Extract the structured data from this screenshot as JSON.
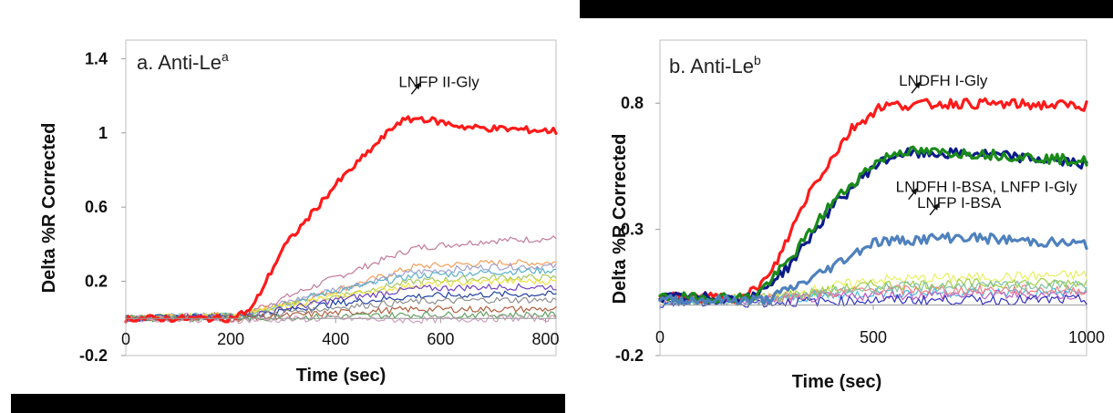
{
  "chart_data": [
    {
      "type": "line",
      "panel_label": "a. Anti-Le",
      "panel_sup": "a",
      "xlabel": "Time (sec)",
      "ylabel": "Delta %R Corrected",
      "xlim": [
        0,
        820
      ],
      "ylim": [
        -0.2,
        1.5
      ],
      "xticks": [
        "0",
        "200",
        "400",
        "600",
        "800"
      ],
      "yticks": [
        "-0.2",
        "0.2",
        "0.6",
        "1",
        "1.4"
      ],
      "xtick_values": [
        0,
        200,
        400,
        600,
        800
      ],
      "ytick_values": [
        -0.2,
        0.2,
        0.6,
        1.0,
        1.4
      ],
      "grid": false,
      "annotations": [
        {
          "text": "LNFP II-Gly",
          "x": 520,
          "y": 1.14
        }
      ],
      "series": [
        {
          "name": "LNFP II-Gly",
          "color": "#ff1a1a",
          "bold": true,
          "x": [
            0,
            200,
            240,
            300,
            400,
            520,
            560,
            650,
            820
          ],
          "y": [
            0.0,
            0.0,
            0.05,
            0.38,
            0.72,
            1.06,
            1.08,
            1.03,
            1.01
          ]
        },
        {
          "color": "#c07a9a",
          "x": [
            0,
            220,
            400,
            550,
            700,
            820
          ],
          "y": [
            0.0,
            0.02,
            0.22,
            0.38,
            0.42,
            0.43
          ]
        },
        {
          "color": "#f2a05a",
          "x": [
            0,
            220,
            400,
            550,
            700,
            820
          ],
          "y": [
            0.0,
            0.02,
            0.15,
            0.28,
            0.3,
            0.3
          ]
        },
        {
          "color": "#a0a0d0",
          "x": [
            0,
            220,
            400,
            550,
            700,
            820
          ],
          "y": [
            0.0,
            0.02,
            0.16,
            0.25,
            0.28,
            0.28
          ]
        },
        {
          "color": "#5ab0c8",
          "x": [
            0,
            220,
            400,
            550,
            700,
            820
          ],
          "y": [
            0.0,
            0.02,
            0.15,
            0.23,
            0.25,
            0.26
          ]
        },
        {
          "color": "#a8c860",
          "x": [
            0,
            220,
            400,
            550,
            700,
            820
          ],
          "y": [
            0.0,
            0.02,
            0.12,
            0.2,
            0.22,
            0.22
          ]
        },
        {
          "color": "#f0e040",
          "x": [
            0,
            220,
            400,
            550,
            700,
            820
          ],
          "y": [
            0.0,
            0.02,
            0.12,
            0.18,
            0.2,
            0.2
          ]
        },
        {
          "color": "#7040c0",
          "x": [
            0,
            220,
            400,
            550,
            700,
            820
          ],
          "y": [
            0.0,
            0.01,
            0.1,
            0.16,
            0.17,
            0.17
          ]
        },
        {
          "color": "#2040a0",
          "x": [
            0,
            220,
            400,
            550,
            700,
            820
          ],
          "y": [
            0.0,
            0.01,
            0.08,
            0.12,
            0.13,
            0.13
          ]
        },
        {
          "color": "#909090",
          "x": [
            0,
            220,
            400,
            550,
            700,
            820
          ],
          "y": [
            0.0,
            0.01,
            0.06,
            0.09,
            0.1,
            0.1
          ]
        },
        {
          "color": "#b06040",
          "x": [
            0,
            220,
            400,
            550,
            700,
            820
          ],
          "y": [
            0.0,
            0.0,
            0.03,
            0.05,
            0.05,
            0.05
          ]
        },
        {
          "color": "#60a060",
          "x": [
            0,
            220,
            400,
            550,
            700,
            820
          ],
          "y": [
            0.0,
            0.0,
            0.01,
            0.02,
            0.02,
            0.02
          ]
        },
        {
          "color": "#d0a0c0",
          "x": [
            0,
            220,
            400,
            550,
            700,
            820
          ],
          "y": [
            0.0,
            -0.01,
            0.0,
            -0.01,
            0.0,
            0.0
          ]
        }
      ]
    },
    {
      "type": "line",
      "panel_label": "b. Anti-Le",
      "panel_sup": "b",
      "xlabel": "Time (sec)",
      "ylabel": "Delta %R Corrected",
      "xlim": [
        0,
        1000
      ],
      "ylim": [
        -0.2,
        1.05
      ],
      "xticks": [
        "0",
        "500",
        "1000"
      ],
      "yticks": [
        "-0.2",
        "0.3",
        "0.8"
      ],
      "xtick_values": [
        0,
        500,
        1000
      ],
      "ytick_values": [
        -0.2,
        0.3,
        0.8
      ],
      "grid": false,
      "annotations": [
        {
          "text": "LNDFH I-Gly",
          "x": 560,
          "y": 0.84
        },
        {
          "text": "LNDFH I-BSA, LNFP I-Gly",
          "x": 510,
          "y": 0.52
        },
        {
          "text": "LNFP I-BSA",
          "x": 560,
          "y": 0.35
        }
      ],
      "series": [
        {
          "name": "LNDFH I-Gly",
          "color": "#ff1a1a",
          "bold": true,
          "x": [
            0,
            200,
            260,
            350,
            450,
            520,
            700,
            1000
          ],
          "y": [
            0.03,
            0.03,
            0.12,
            0.45,
            0.7,
            0.79,
            0.8,
            0.79
          ]
        },
        {
          "name": "LNDFH I-BSA",
          "color": "#0a1a8a",
          "bold": true,
          "x": [
            0,
            220,
            300,
            400,
            500,
            560,
            750,
            1000
          ],
          "y": [
            0.03,
            0.03,
            0.15,
            0.38,
            0.55,
            0.6,
            0.6,
            0.56
          ]
        },
        {
          "name": "LNFP I-Gly",
          "color": "#1a8a1a",
          "bold": true,
          "x": [
            0,
            220,
            300,
            400,
            500,
            560,
            750,
            1000
          ],
          "y": [
            0.03,
            0.03,
            0.17,
            0.4,
            0.56,
            0.61,
            0.6,
            0.57
          ]
        },
        {
          "name": "LNFP I-BSA",
          "color": "#4f81bd",
          "bold": true,
          "x": [
            0,
            250,
            350,
            450,
            500,
            700,
            1000
          ],
          "y": [
            0.02,
            0.02,
            0.1,
            0.2,
            0.25,
            0.27,
            0.24
          ]
        },
        {
          "color": "#e8f060",
          "x": [
            0,
            250,
            500,
            1000
          ],
          "y": [
            0.02,
            0.03,
            0.1,
            0.12
          ]
        },
        {
          "color": "#a0d040",
          "x": [
            0,
            250,
            500,
            1000
          ],
          "y": [
            0.02,
            0.03,
            0.08,
            0.09
          ]
        },
        {
          "color": "#40c0e0",
          "x": [
            0,
            250,
            500,
            1000
          ],
          "y": [
            0.02,
            0.02,
            0.05,
            0.05
          ]
        },
        {
          "color": "#c060c0",
          "x": [
            0,
            250,
            500,
            1000
          ],
          "y": [
            0.02,
            0.02,
            0.04,
            0.04
          ]
        },
        {
          "color": "#3030c0",
          "x": [
            0,
            250,
            500,
            1000
          ],
          "y": [
            0.01,
            0.01,
            0.02,
            0.02
          ]
        },
        {
          "color": "#f08080",
          "x": [
            0,
            250,
            500,
            1000
          ],
          "y": [
            0.03,
            0.03,
            0.06,
            0.06
          ]
        },
        {
          "color": "#80c0a0",
          "x": [
            0,
            250,
            500,
            1000
          ],
          "y": [
            0.02,
            0.02,
            0.07,
            0.08
          ]
        }
      ]
    }
  ]
}
